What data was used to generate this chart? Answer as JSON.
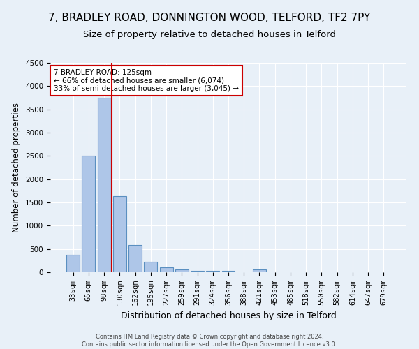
{
  "title1": "7, BRADLEY ROAD, DONNINGTON WOOD, TELFORD, TF2 7PY",
  "title2": "Size of property relative to detached houses in Telford",
  "xlabel": "Distribution of detached houses by size in Telford",
  "ylabel": "Number of detached properties",
  "categories": [
    "33sqm",
    "65sqm",
    "98sqm",
    "130sqm",
    "162sqm",
    "195sqm",
    "227sqm",
    "259sqm",
    "291sqm",
    "324sqm",
    "356sqm",
    "388sqm",
    "421sqm",
    "453sqm",
    "485sqm",
    "518sqm",
    "550sqm",
    "582sqm",
    "614sqm",
    "647sqm",
    "679sqm"
  ],
  "values": [
    375,
    2500,
    3750,
    1640,
    590,
    230,
    105,
    60,
    35,
    25,
    35,
    0,
    55,
    0,
    0,
    0,
    0,
    0,
    0,
    0,
    0
  ],
  "bar_color": "#aec6e8",
  "bar_edge_color": "#5a8fc0",
  "vline_color": "#cc0000",
  "annotation_text": "7 BRADLEY ROAD: 125sqm\n← 66% of detached houses are smaller (6,074)\n33% of semi-detached houses are larger (3,045) →",
  "annotation_box_color": "white",
  "annotation_box_edgecolor": "#cc0000",
  "ylim": [
    0,
    4500
  ],
  "yticks": [
    0,
    500,
    1000,
    1500,
    2000,
    2500,
    3000,
    3500,
    4000,
    4500
  ],
  "bg_color": "#e8f0f8",
  "plot_bg_color": "#e8f0f8",
  "footer": "Contains HM Land Registry data © Crown copyright and database right 2024.\nContains public sector information licensed under the Open Government Licence v3.0.",
  "title1_fontsize": 11,
  "title2_fontsize": 9.5,
  "xlabel_fontsize": 9,
  "ylabel_fontsize": 8.5,
  "tick_fontsize": 7.5,
  "annotation_fontsize": 7.5,
  "footer_fontsize": 6
}
